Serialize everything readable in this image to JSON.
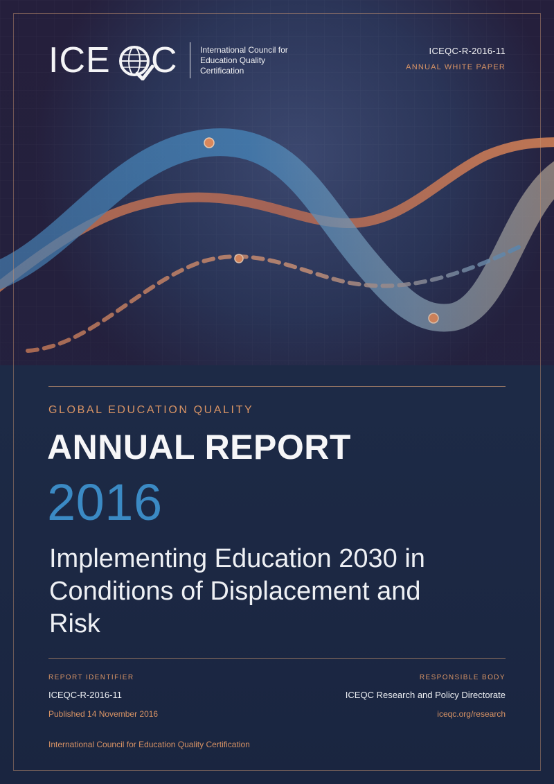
{
  "header": {
    "logo_wordmark": "ICEQC",
    "logo_org_name": "International Council for Education Quality Certification",
    "report_code": "ICEQC-R-2016-11",
    "report_type": "ANNUAL WHITE PAPER"
  },
  "cover": {
    "kicker": "GLOBAL EDUCATION QUALITY",
    "title": "ANNUAL REPORT",
    "year": "2016",
    "subtitle": "Implementing Education 2030 in Conditions of Displacement and Risk"
  },
  "meta": {
    "left_label": "REPORT IDENTIFIER",
    "left_value": "ICEQC-R-2016-11",
    "left_sub": "Published 14 November 2016",
    "right_label": "RESPONSIBLE BODY",
    "right_value": "ICEQC Research and Policy Directorate",
    "right_sub": "iceqc.org/research"
  },
  "footer": {
    "organization": "International Council for Education Quality Certification"
  },
  "colors": {
    "background": "#1d2a46",
    "accent_orange": "#d99465",
    "accent_blue": "#3b8ac4",
    "text": "#eef0f4"
  }
}
